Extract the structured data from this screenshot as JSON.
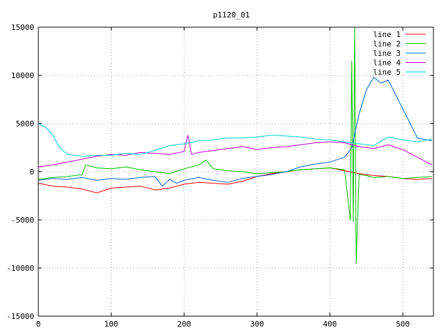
{
  "chart_data": {
    "type": "line",
    "title": "p1120_01",
    "xlabel": "",
    "ylabel": "",
    "xlim": [
      0,
      542
    ],
    "ylim": [
      -15000,
      15000
    ],
    "x_ticks": [
      0,
      100,
      200,
      300,
      400,
      500
    ],
    "y_ticks": [
      -15000,
      -10000,
      -5000,
      0,
      5000,
      10000,
      15000
    ],
    "grid": true,
    "legend_position": "top-right",
    "series": [
      {
        "name": "line 1",
        "color": "#ff0000",
        "x": [
          0,
          20,
          40,
          60,
          80,
          100,
          120,
          140,
          160,
          180,
          200,
          220,
          240,
          260,
          280,
          300,
          320,
          340,
          360,
          380,
          400,
          420,
          440,
          460,
          480,
          500,
          520,
          540
        ],
        "y": [
          -1200,
          -1500,
          -1600,
          -1800,
          -2200,
          -1700,
          -1600,
          -1500,
          -1900,
          -1700,
          -1300,
          -1100,
          -1200,
          -1300,
          -1000,
          -500,
          -200,
          0,
          200,
          300,
          400,
          100,
          -200,
          -400,
          -500,
          -700,
          -800,
          -700
        ]
      },
      {
        "name": "line 2",
        "color": "#00c000",
        "x": [
          0,
          20,
          40,
          60,
          65,
          80,
          100,
          120,
          140,
          160,
          180,
          200,
          220,
          230,
          240,
          260,
          280,
          300,
          320,
          340,
          360,
          380,
          400,
          420,
          428,
          430,
          432,
          434,
          436,
          440,
          450,
          460,
          480,
          500,
          520,
          540
        ],
        "y": [
          -800,
          -600,
          -500,
          -300,
          700,
          400,
          300,
          500,
          200,
          0,
          -200,
          300,
          700,
          1200,
          300,
          100,
          0,
          -200,
          -100,
          0,
          200,
          300,
          400,
          200,
          -5000,
          11500,
          -5200,
          15000,
          -9500,
          -300,
          -400,
          -600,
          -500,
          -700,
          -600,
          -500
        ]
      },
      {
        "name": "line 3",
        "color": "#0060d0",
        "x": [
          0,
          20,
          40,
          60,
          80,
          100,
          120,
          140,
          160,
          170,
          180,
          190,
          200,
          220,
          240,
          260,
          280,
          300,
          320,
          340,
          360,
          380,
          400,
          420,
          430,
          440,
          450,
          460,
          470,
          480,
          500,
          520,
          540
        ],
        "y": [
          -900,
          -700,
          -800,
          -600,
          -900,
          -700,
          -800,
          -600,
          -500,
          -1500,
          -800,
          -1200,
          -900,
          -600,
          -900,
          -1100,
          -700,
          -500,
          -300,
          0,
          500,
          800,
          1000,
          1500,
          2500,
          6000,
          8500,
          9800,
          9200,
          9500,
          6500,
          3500,
          3200
        ]
      },
      {
        "name": "line 4",
        "color": "#c000d0",
        "x": [
          0,
          20,
          40,
          60,
          80,
          100,
          120,
          140,
          160,
          180,
          200,
          205,
          210,
          220,
          240,
          260,
          280,
          300,
          320,
          340,
          360,
          380,
          400,
          420,
          440,
          460,
          480,
          500,
          520,
          540
        ],
        "y": [
          500,
          700,
          1000,
          1300,
          1600,
          1800,
          1700,
          2000,
          1900,
          1800,
          2100,
          3800,
          1800,
          2000,
          2200,
          2400,
          2600,
          2300,
          2500,
          2600,
          2800,
          3000,
          3100,
          3000,
          2600,
          2400,
          2800,
          2300,
          1500,
          700
        ]
      },
      {
        "name": "line 5",
        "color": "#00d0d0",
        "x": [
          0,
          10,
          20,
          30,
          40,
          60,
          80,
          100,
          120,
          140,
          160,
          180,
          200,
          220,
          240,
          260,
          280,
          300,
          320,
          340,
          360,
          380,
          400,
          420,
          440,
          460,
          480,
          500,
          520,
          540
        ],
        "y": [
          5000,
          4600,
          3800,
          2400,
          1800,
          1600,
          1700,
          1700,
          1900,
          1800,
          2200,
          2700,
          2900,
          3200,
          3300,
          3500,
          3500,
          3600,
          3800,
          3700,
          3600,
          3400,
          3300,
          3100,
          2900,
          2700,
          3600,
          3300,
          3100,
          3400
        ]
      }
    ]
  }
}
